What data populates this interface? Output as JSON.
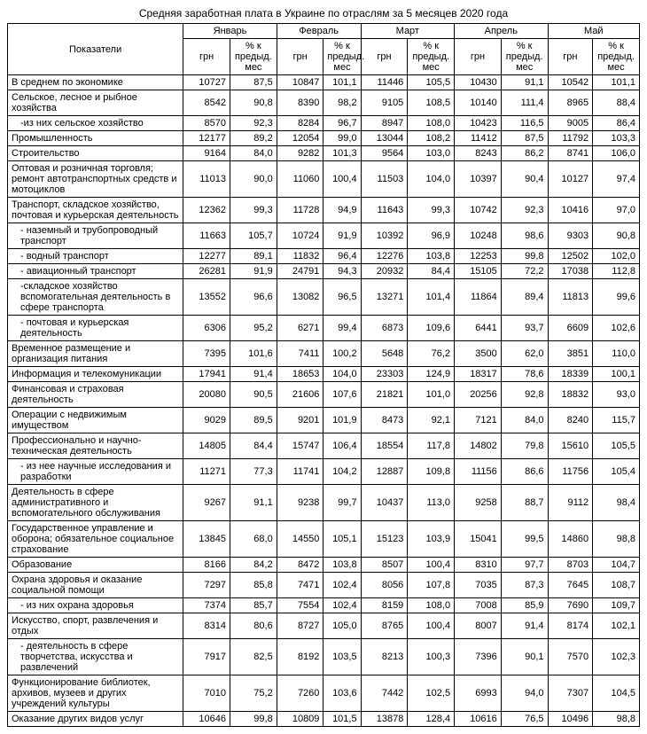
{
  "title": "Средняя заработная плата в Украине по отраслям за 5 месяцев 2020 года",
  "headers": {
    "indicator": "Показатели",
    "months": [
      "Январь",
      "Февраль",
      "Март",
      "Апрель",
      "Май"
    ],
    "sub_grn": "грн",
    "sub_pct": "% к предыд. мес",
    "sub_pct_feb": "% к предыд. мес"
  },
  "rows": [
    {
      "label": "В среднем по экономике",
      "indent": false,
      "vals": [
        "10727",
        "87,5",
        "10847",
        "101,1",
        "11446",
        "105,5",
        "10430",
        "91,1",
        "10542",
        "101,1"
      ]
    },
    {
      "label": "Сельское, лесное и рыбное хозяйства",
      "indent": false,
      "vals": [
        "8542",
        "90,8",
        "8390",
        "98,2",
        "9105",
        "108,5",
        "10140",
        "111,4",
        "8965",
        "88,4"
      ]
    },
    {
      "label": "-из них сельское хозяйство",
      "indent": true,
      "vals": [
        "8570",
        "92,3",
        "8284",
        "96,7",
        "8947",
        "108,0",
        "10423",
        "116,5",
        "9005",
        "86,4"
      ]
    },
    {
      "label": "Промышленность",
      "indent": false,
      "vals": [
        "12177",
        "89,2",
        "12054",
        "99,0",
        "13044",
        "108,2",
        "11412",
        "87,5",
        "11792",
        "103,3"
      ]
    },
    {
      "label": "Строительство",
      "indent": false,
      "vals": [
        "9164",
        "84,0",
        "9282",
        "101,3",
        "9564",
        "103,0",
        "8243",
        "86,2",
        "8741",
        "106,0"
      ]
    },
    {
      "label": "Оптовая и розничная торговля; ремонт автотранспортных средств и мотоциклов",
      "indent": false,
      "vals": [
        "11013",
        "90,0",
        "11060",
        "100,4",
        "11503",
        "104,0",
        "10397",
        "90,4",
        "10127",
        "97,4"
      ]
    },
    {
      "label": "Транспорт, складское хозяйство, почтовая и курьерская деятельность",
      "indent": false,
      "vals": [
        "12362",
        "99,3",
        "11728",
        "94,9",
        "11643",
        "99,3",
        "10742",
        "92,3",
        "10416",
        "97,0"
      ]
    },
    {
      "label": "- наземный и трубопроводный транспорт",
      "indent": true,
      "vals": [
        "11663",
        "105,7",
        "10724",
        "91,9",
        "10392",
        "96,9",
        "10248",
        "98,6",
        "9303",
        "90,8"
      ]
    },
    {
      "label": "- водный транспорт",
      "indent": true,
      "vals": [
        "12277",
        "89,1",
        "11832",
        "96,4",
        "12276",
        "103,8",
        "12253",
        "99,8",
        "12502",
        "102,0"
      ]
    },
    {
      "label": "- авиационный транспорт",
      "indent": true,
      "vals": [
        "26281",
        "91,9",
        "24791",
        "94,3",
        "20932",
        "84,4",
        "15105",
        "72,2",
        "17038",
        "112,8"
      ]
    },
    {
      "label": "-складское хозяйство вспомогательная деятельность в сфере транспорта",
      "indent": true,
      "vals": [
        "13552",
        "96,6",
        "13082",
        "96,5",
        "13271",
        "101,4",
        "11864",
        "89,4",
        "11813",
        "99,6"
      ]
    },
    {
      "label": "- почтовая и курьерская деятельность",
      "indent": true,
      "vals": [
        "6306",
        "95,2",
        "6271",
        "99,4",
        "6873",
        "109,6",
        "6441",
        "93,7",
        "6609",
        "102,6"
      ]
    },
    {
      "label": "Временное размещение и организация питания",
      "indent": false,
      "vals": [
        "7395",
        "101,6",
        "7411",
        "100,2",
        "5648",
        "76,2",
        "3500",
        "62,0",
        "3851",
        "110,0"
      ]
    },
    {
      "label": "Информация и телекомуникации",
      "indent": false,
      "vals": [
        "17941",
        "91,4",
        "18653",
        "104,0",
        "23303",
        "124,9",
        "18317",
        "78,6",
        "18339",
        "100,1"
      ]
    },
    {
      "label": "Финансовая и страховая деятельность",
      "indent": false,
      "vals": [
        "20080",
        "90,5",
        "21606",
        "107,6",
        "21821",
        "101,0",
        "20256",
        "92,8",
        "18832",
        "93,0"
      ]
    },
    {
      "label": "Операции с недвижимым имуществом",
      "indent": false,
      "vals": [
        "9029",
        "89,5",
        "9201",
        "101,9",
        "8473",
        "92,1",
        "7121",
        "84,0",
        "8240",
        "115,7"
      ]
    },
    {
      "label": "Профессионально и научно-техническая деятельность",
      "indent": false,
      "vals": [
        "14805",
        "84,4",
        "15747",
        "106,4",
        "18554",
        "117,8",
        "14802",
        "79,8",
        "15610",
        "105,5"
      ]
    },
    {
      "label": "- из нее научные исследования и разработки",
      "indent": true,
      "vals": [
        "11271",
        "77,3",
        "11741",
        "104,2",
        "12887",
        "109,8",
        "11156",
        "86,6",
        "11756",
        "105,4"
      ]
    },
    {
      "label": "Деятельность в сфере административного и вспомогательного обслуживания",
      "indent": false,
      "vals": [
        "9267",
        "91,1",
        "9238",
        "99,7",
        "10437",
        "113,0",
        "9258",
        "88,7",
        "9112",
        "98,4"
      ]
    },
    {
      "label": "Государственное управление и оборона; обязательное социальное страхование",
      "indent": false,
      "vals": [
        "13845",
        "68,0",
        "14550",
        "105,1",
        "15123",
        "103,9",
        "15041",
        "99,5",
        "14860",
        "98,8"
      ]
    },
    {
      "label": "Образование",
      "indent": false,
      "vals": [
        "8166",
        "84,2",
        "8472",
        "103,8",
        "8507",
        "100,4",
        "8310",
        "97,7",
        "8703",
        "104,7"
      ]
    },
    {
      "label": "Охрана здоровья и оказание социальной помощи",
      "indent": false,
      "vals": [
        "7297",
        "85,8",
        "7471",
        "102,4",
        "8056",
        "107,8",
        "7035",
        "87,3",
        "7645",
        "108,7"
      ]
    },
    {
      "label": "- из них охрана здоровья",
      "indent": true,
      "vals": [
        "7374",
        "85,7",
        "7554",
        "102,4",
        "8159",
        "108,0",
        "7008",
        "85,9",
        "7690",
        "109,7"
      ]
    },
    {
      "label": "Искусство, спорт, развлечения и отдых",
      "indent": false,
      "vals": [
        "8314",
        "80,6",
        "8727",
        "105,0",
        "8765",
        "100,4",
        "8007",
        "91,4",
        "8174",
        "102,1"
      ]
    },
    {
      "label": "- деятельность в сфере творчетства, искусства и развлечений",
      "indent": true,
      "vals": [
        "7917",
        "82,5",
        "8192",
        "103,5",
        "8213",
        "100,3",
        "7396",
        "90,1",
        "7570",
        "102,3"
      ]
    },
    {
      "label": "Функционирование  библиотек, архивов, музеев и других учреждений культуры",
      "indent": false,
      "vals": [
        "7010",
        "75,2",
        "7260",
        "103,6",
        "7442",
        "102,5",
        "6993",
        "94,0",
        "7307",
        "104,5"
      ]
    },
    {
      "label": "Оказание других видов услуг",
      "indent": false,
      "vals": [
        "10646",
        "99,8",
        "10809",
        "101,5",
        "13878",
        "128,4",
        "10616",
        "76,5",
        "10496",
        "98,8"
      ]
    }
  ]
}
